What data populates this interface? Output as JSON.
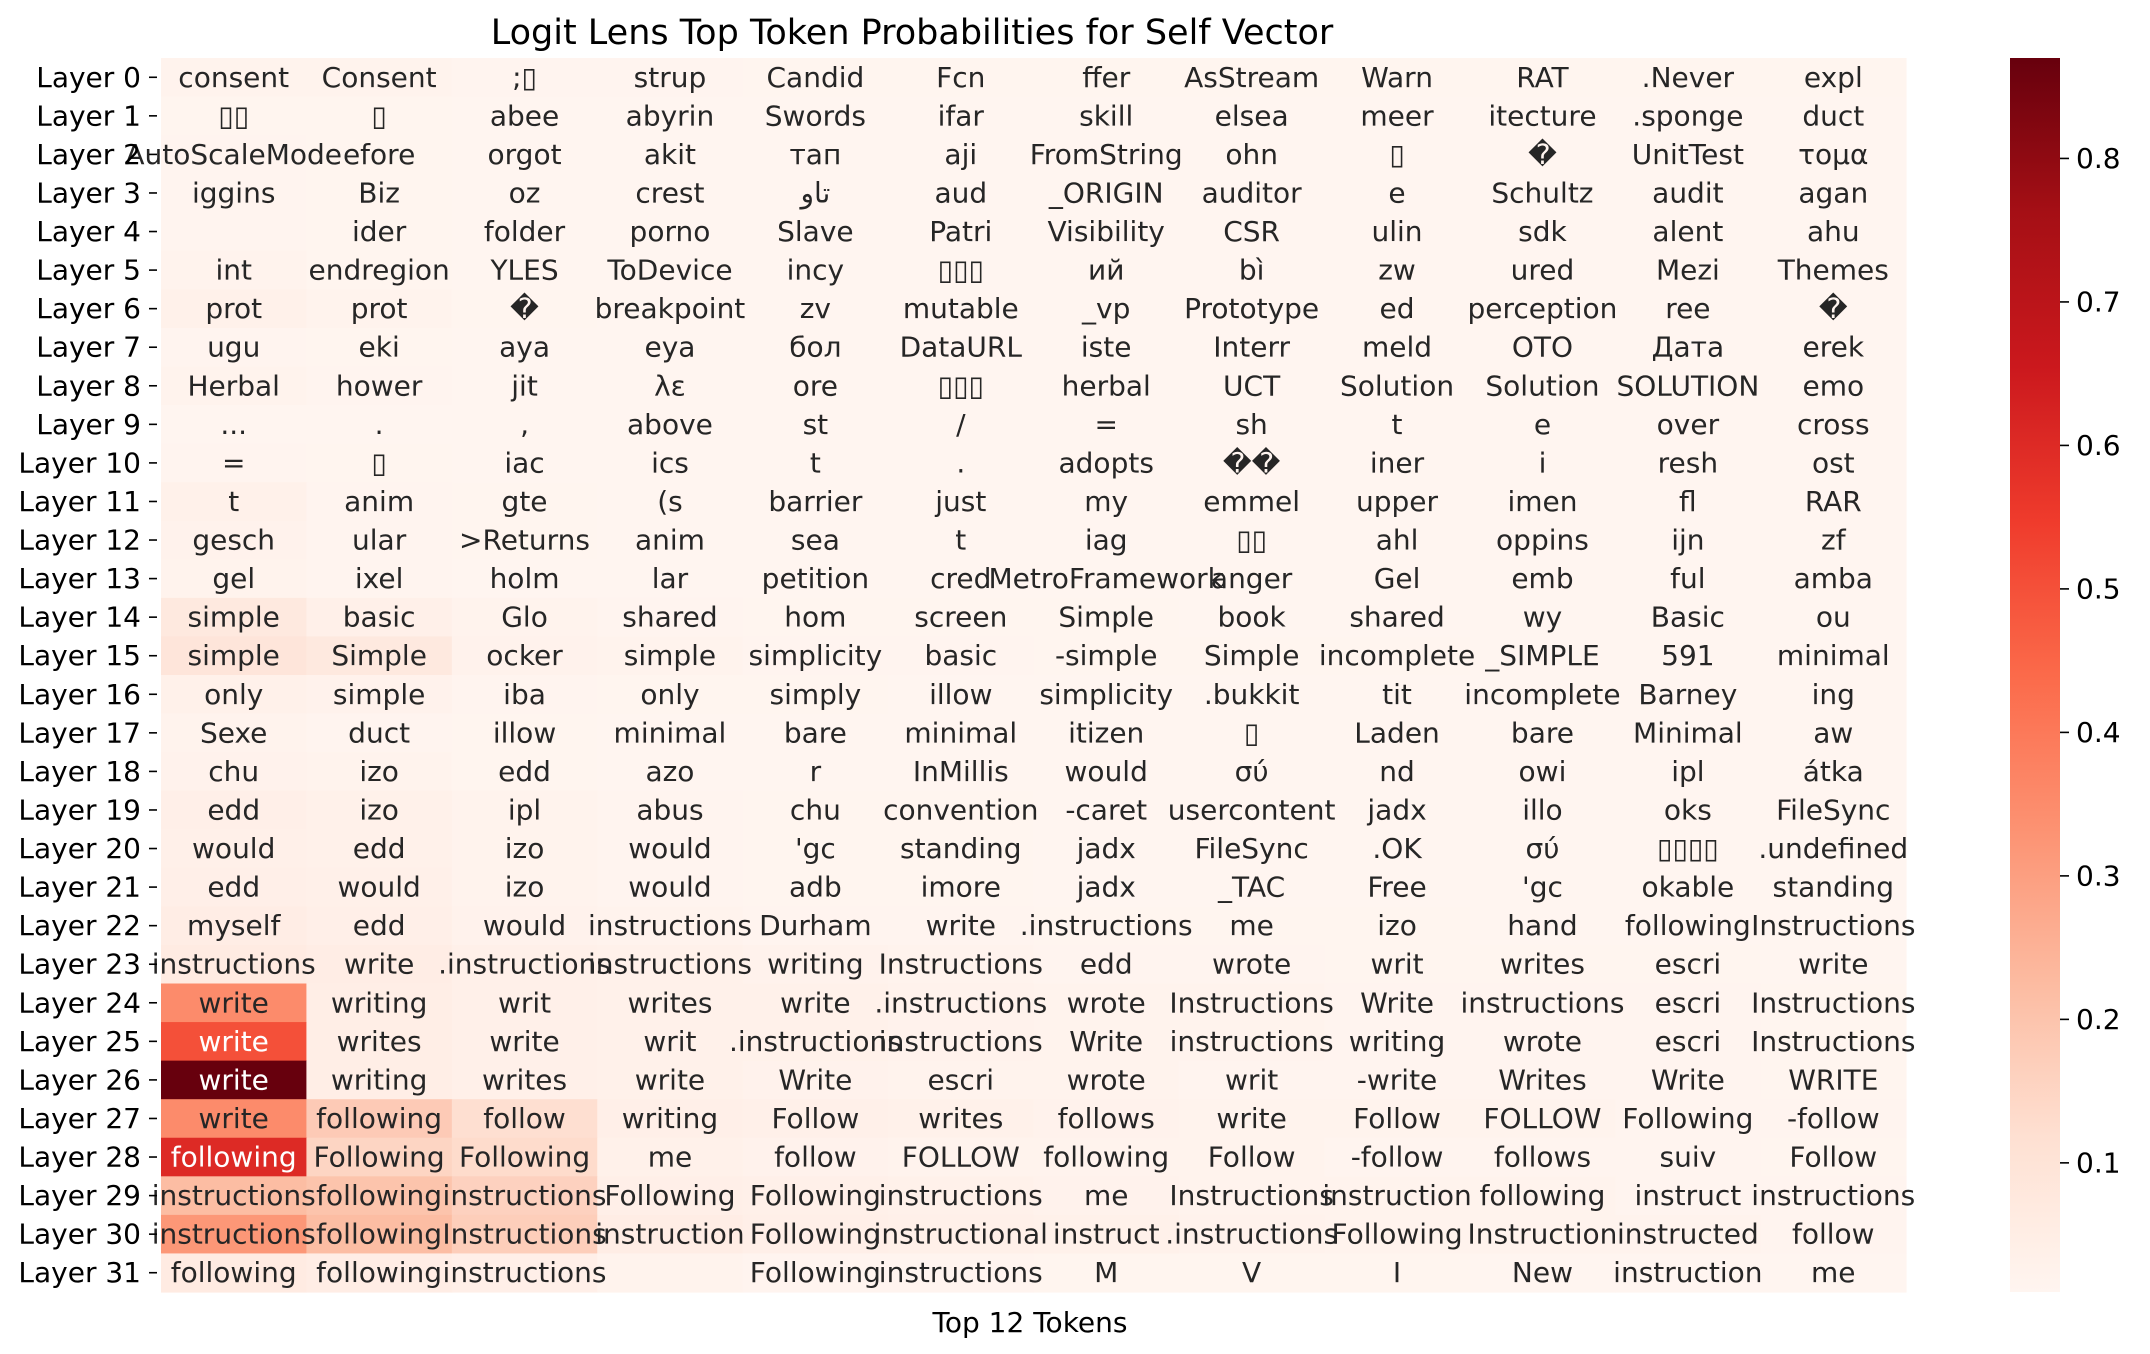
{
  "chart_data": {
    "type": "heatmap",
    "title": "Logit Lens Top Token Probabilities for Self Vector",
    "xlabel": "Top 12 Tokens",
    "ylabel": "",
    "rows": [
      "Layer 0",
      "Layer 1",
      "Layer 2",
      "Layer 3",
      "Layer 4",
      "Layer 5",
      "Layer 6",
      "Layer 7",
      "Layer 8",
      "Layer 9",
      "Layer 10",
      "Layer 11",
      "Layer 12",
      "Layer 13",
      "Layer 14",
      "Layer 15",
      "Layer 16",
      "Layer 17",
      "Layer 18",
      "Layer 19",
      "Layer 20",
      "Layer 21",
      "Layer 22",
      "Layer 23",
      "Layer 24",
      "Layer 25",
      "Layer 26",
      "Layer 27",
      "Layer 28",
      "Layer 29",
      "Layer 30",
      "Layer 31"
    ],
    "tokens": [
      [
        "consent",
        "Consent",
        ";▯",
        "strup",
        "Candid",
        "Fcn",
        "ffer",
        "AsStream",
        "Warn",
        "RAT",
        ".Never",
        "expl"
      ],
      [
        "▯▯",
        "▯",
        "abee",
        "abyrin",
        "Swords",
        "ifar",
        "skill",
        "elsea",
        "meer",
        "itecture",
        ".sponge",
        "duct"
      ],
      [
        "AutoScaleMode",
        "efore",
        "orgot",
        "akit",
        "тап",
        "aji",
        "FromString",
        "ohn",
        "▯",
        "�",
        "UnitTest",
        "τομα"
      ],
      [
        "iggins",
        "Biz",
        "oz",
        "crest",
        "تاو",
        "aud",
        "_ORIGIN",
        "auditor",
        "e",
        "Schultz",
        "audit",
        "agan"
      ],
      [
        "",
        "ider",
        "folder",
        "porno",
        "Slave",
        "Patri",
        "Visibility",
        "CSR",
        "ulin",
        "sdk",
        "alent",
        "ahu"
      ],
      [
        "int",
        "endregion",
        "YLES",
        "ToDevice",
        "incy",
        "▯▯▯",
        "ий",
        "bì",
        "zw",
        "ured",
        "Mezi",
        "Themes"
      ],
      [
        "prot",
        "prot",
        "�",
        "breakpoint",
        "zv",
        "mutable",
        "_vp",
        "Prototype",
        "ed",
        "perception",
        "ree",
        "�"
      ],
      [
        "ugu",
        "eki",
        "aya",
        "eya",
        "бол",
        "DataURL",
        "iste",
        "Interr",
        "meld",
        "OTO",
        "Дата",
        "erek"
      ],
      [
        "Herbal",
        "hower",
        "jit",
        "λε",
        "ore",
        "▯▯▯",
        "herbal",
        "UCT",
        "Solution",
        "Solution",
        "SOLUTION",
        "emo"
      ],
      [
        "...",
        ".",
        ",",
        "above",
        "st",
        "/",
        "=",
        "sh",
        "t",
        "e",
        "over",
        "cross"
      ],
      [
        "=",
        "▯",
        "iac",
        "ics",
        "t",
        ".",
        "adopts",
        "��",
        "iner",
        "i",
        "resh",
        "ost"
      ],
      [
        "t",
        "anim",
        "gte",
        "(s",
        "barrier",
        "just",
        "my",
        "emmel",
        "upper",
        "imen",
        "fl",
        "RAR"
      ],
      [
        "gesch",
        "ular",
        ">Returns",
        "anim",
        "sea",
        "t",
        "iag",
        "▯▯",
        "ahl",
        "oppins",
        "ijn",
        "zf"
      ],
      [
        "gel",
        "ixel",
        "holm",
        "lar",
        "petition",
        "cred",
        "MetroFramework",
        "anger",
        "Gel",
        "emb",
        "ful",
        "amba"
      ],
      [
        "simple",
        "basic",
        "Glo",
        "shared",
        "hom",
        "screen",
        "Simple",
        "book",
        "shared",
        "wy",
        "Basic",
        "ou"
      ],
      [
        "simple",
        "Simple",
        "ocker",
        "simple",
        "simplicity",
        "basic",
        "-simple",
        "Simple",
        "incomplete",
        "_SIMPLE",
        "591",
        "minimal"
      ],
      [
        "only",
        "simple",
        "iba",
        "only",
        "simply",
        "illow",
        "simplicity",
        ".bukkit",
        "tit",
        "incomplete",
        "Barney",
        "ing"
      ],
      [
        "Sexe",
        "duct",
        "illow",
        "minimal",
        "bare",
        "minimal",
        "itizen",
        "▯",
        "Laden",
        "bare",
        "Minimal",
        "aw"
      ],
      [
        "chu",
        "izo",
        "edd",
        "azo",
        "r",
        "InMillis",
        "would",
        "σύ",
        "nd",
        "owi",
        "ipl",
        "átka"
      ],
      [
        "edd",
        "izo",
        "ipl",
        "abus",
        "chu",
        "convention",
        "-caret",
        "usercontent",
        "jadx",
        "illo",
        "oks",
        "FileSync"
      ],
      [
        "would",
        "edd",
        "izo",
        "would",
        "'gc",
        "standing",
        "jadx",
        "FileSync",
        ".OK",
        "σύ",
        "▯▯▯▯",
        ".undefined"
      ],
      [
        "edd",
        "would",
        "izo",
        "would",
        "adb",
        "imore",
        "jadx",
        "_TAC",
        "Free",
        "'gc",
        "okable",
        "standing"
      ],
      [
        "myself",
        "edd",
        "would",
        "instructions",
        "Durham",
        "write",
        ".instructions",
        "me",
        "izo",
        "hand",
        "following",
        "Instructions"
      ],
      [
        "instructions",
        "write",
        ".instructions",
        "instructions",
        "writing",
        "Instructions",
        "edd",
        "wrote",
        "writ",
        "writes",
        "escri",
        "write"
      ],
      [
        "write",
        "writing",
        "writ",
        "writes",
        "write",
        ".instructions",
        "wrote",
        "Instructions",
        "Write",
        "instructions",
        "escri",
        "Instructions"
      ],
      [
        "write",
        "writes",
        "write",
        "writ",
        ".instructions",
        "instructions",
        "Write",
        "instructions",
        "writing",
        "wrote",
        "escri",
        "Instructions"
      ],
      [
        "write",
        "writing",
        "writes",
        "write",
        "Write",
        "escri",
        "wrote",
        "writ",
        "-write",
        "Writes",
        "Write",
        "WRITE"
      ],
      [
        "write",
        "following",
        "follow",
        "writing",
        "Follow",
        "writes",
        "follows",
        "write",
        "Follow",
        "FOLLOW",
        "Following",
        "-follow"
      ],
      [
        "following",
        "Following",
        "Following",
        "me",
        "follow",
        "FOLLOW",
        "following",
        "Follow",
        "-follow",
        "follows",
        "suiv",
        "Follow"
      ],
      [
        "instructions",
        "following",
        "instructions",
        "Following",
        "Following",
        "instructions",
        "me",
        "Instructions",
        "instruction",
        "following",
        "instruct",
        "instructions"
      ],
      [
        "instructions",
        "following",
        "Instructions",
        "instruction",
        "Following",
        "instructional",
        "instruct",
        ".instructions",
        "Following",
        "Instruction",
        "instructed",
        "follow"
      ],
      [
        "following",
        "following",
        "instructions",
        "",
        "Following",
        "instructions",
        "M",
        "V",
        "I",
        "New",
        "instruction",
        "me"
      ]
    ],
    "values": [
      [
        0.02,
        0.02,
        0.015,
        0.015,
        0.012,
        0.012,
        0.012,
        0.012,
        0.012,
        0.012,
        0.012,
        0.012
      ],
      [
        0.012,
        0.012,
        0.01,
        0.01,
        0.01,
        0.01,
        0.01,
        0.01,
        0.01,
        0.01,
        0.01,
        0.01
      ],
      [
        0.015,
        0.012,
        0.01,
        0.01,
        0.01,
        0.01,
        0.01,
        0.01,
        0.01,
        0.01,
        0.01,
        0.01
      ],
      [
        0.015,
        0.012,
        0.01,
        0.01,
        0.01,
        0.01,
        0.01,
        0.01,
        0.01,
        0.01,
        0.01,
        0.01
      ],
      [
        0.015,
        0.012,
        0.01,
        0.01,
        0.01,
        0.01,
        0.01,
        0.01,
        0.01,
        0.01,
        0.01,
        0.01
      ],
      [
        0.02,
        0.012,
        0.01,
        0.01,
        0.01,
        0.01,
        0.01,
        0.01,
        0.01,
        0.01,
        0.01,
        0.01
      ],
      [
        0.03,
        0.02,
        0.012,
        0.01,
        0.01,
        0.01,
        0.01,
        0.01,
        0.01,
        0.01,
        0.01,
        0.01
      ],
      [
        0.015,
        0.012,
        0.01,
        0.01,
        0.01,
        0.01,
        0.01,
        0.01,
        0.01,
        0.01,
        0.01,
        0.01
      ],
      [
        0.02,
        0.015,
        0.01,
        0.01,
        0.01,
        0.01,
        0.01,
        0.01,
        0.01,
        0.01,
        0.01,
        0.01
      ],
      [
        0.01,
        0.01,
        0.01,
        0.01,
        0.01,
        0.01,
        0.01,
        0.01,
        0.01,
        0.01,
        0.01,
        0.01
      ],
      [
        0.015,
        0.012,
        0.01,
        0.01,
        0.01,
        0.01,
        0.01,
        0.01,
        0.01,
        0.01,
        0.01,
        0.01
      ],
      [
        0.03,
        0.015,
        0.012,
        0.01,
        0.01,
        0.01,
        0.01,
        0.01,
        0.01,
        0.01,
        0.01,
        0.01
      ],
      [
        0.025,
        0.015,
        0.012,
        0.01,
        0.01,
        0.01,
        0.01,
        0.01,
        0.01,
        0.01,
        0.01,
        0.01
      ],
      [
        0.02,
        0.015,
        0.01,
        0.01,
        0.01,
        0.01,
        0.01,
        0.01,
        0.01,
        0.01,
        0.01,
        0.01
      ],
      [
        0.07,
        0.035,
        0.02,
        0.015,
        0.012,
        0.012,
        0.012,
        0.01,
        0.01,
        0.01,
        0.01,
        0.01
      ],
      [
        0.09,
        0.07,
        0.025,
        0.02,
        0.015,
        0.015,
        0.012,
        0.012,
        0.012,
        0.01,
        0.01,
        0.01
      ],
      [
        0.03,
        0.025,
        0.015,
        0.012,
        0.012,
        0.01,
        0.01,
        0.01,
        0.01,
        0.01,
        0.01,
        0.01
      ],
      [
        0.02,
        0.015,
        0.012,
        0.01,
        0.01,
        0.01,
        0.01,
        0.01,
        0.01,
        0.01,
        0.01,
        0.01
      ],
      [
        0.025,
        0.02,
        0.012,
        0.01,
        0.01,
        0.01,
        0.01,
        0.01,
        0.01,
        0.01,
        0.01,
        0.01
      ],
      [
        0.04,
        0.03,
        0.02,
        0.015,
        0.012,
        0.012,
        0.01,
        0.01,
        0.01,
        0.01,
        0.01,
        0.01
      ],
      [
        0.035,
        0.03,
        0.02,
        0.015,
        0.012,
        0.012,
        0.01,
        0.01,
        0.01,
        0.01,
        0.01,
        0.01
      ],
      [
        0.04,
        0.035,
        0.02,
        0.015,
        0.012,
        0.012,
        0.01,
        0.01,
        0.01,
        0.01,
        0.01,
        0.01
      ],
      [
        0.05,
        0.04,
        0.025,
        0.02,
        0.015,
        0.015,
        0.012,
        0.012,
        0.012,
        0.01,
        0.01,
        0.01
      ],
      [
        0.06,
        0.05,
        0.035,
        0.03,
        0.025,
        0.02,
        0.015,
        0.015,
        0.012,
        0.012,
        0.012,
        0.01
      ],
      [
        0.35,
        0.045,
        0.035,
        0.03,
        0.03,
        0.025,
        0.02,
        0.02,
        0.015,
        0.015,
        0.015,
        0.012
      ],
      [
        0.5,
        0.045,
        0.035,
        0.03,
        0.03,
        0.025,
        0.02,
        0.02,
        0.015,
        0.015,
        0.015,
        0.012
      ],
      [
        0.87,
        0.045,
        0.035,
        0.03,
        0.025,
        0.02,
        0.02,
        0.015,
        0.015,
        0.015,
        0.015,
        0.012
      ],
      [
        0.35,
        0.18,
        0.12,
        0.04,
        0.035,
        0.03,
        0.025,
        0.02,
        0.02,
        0.02,
        0.015,
        0.015
      ],
      [
        0.6,
        0.15,
        0.13,
        0.03,
        0.025,
        0.02,
        0.02,
        0.02,
        0.015,
        0.015,
        0.015,
        0.012
      ],
      [
        0.22,
        0.2,
        0.16,
        0.04,
        0.035,
        0.03,
        0.025,
        0.02,
        0.02,
        0.02,
        0.015,
        0.015
      ],
      [
        0.32,
        0.22,
        0.17,
        0.05,
        0.04,
        0.035,
        0.03,
        0.025,
        0.02,
        0.02,
        0.02,
        0.015
      ],
      [
        0.06,
        0.05,
        0.04,
        0.02,
        0.015,
        0.015,
        0.012,
        0.012,
        0.012,
        0.01,
        0.01,
        0.01
      ]
    ],
    "colorbar_ticks": [
      0.1,
      0.2,
      0.3,
      0.4,
      0.5,
      0.6,
      0.7,
      0.8
    ],
    "vmin": 0.01,
    "vmax": 0.87,
    "colormap": "Reds",
    "grid": false
  }
}
